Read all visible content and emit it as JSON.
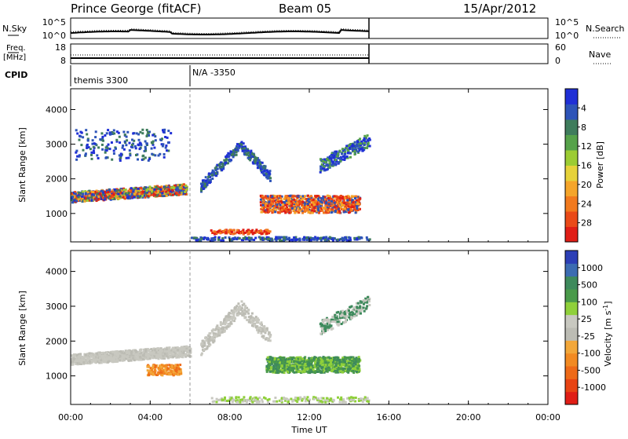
{
  "header": {
    "station": "Prince George (fitACF)",
    "beam": "Beam 05",
    "date": "15/Apr/2012"
  },
  "noise_panel": {
    "left_label": "N.Sky",
    "right_label": "N.Search",
    "left_ticks": [
      "10^5",
      "10^0"
    ],
    "right_ticks": [
      "10^5",
      "10^0"
    ]
  },
  "freq_panel": {
    "left_label_line1": "Freq.",
    "left_label_line2": "[MHz]",
    "right_label": "Nave",
    "left_ticks": [
      "18",
      "8"
    ],
    "right_ticks": [
      "60",
      "0"
    ]
  },
  "cpid_panel": {
    "label": "CPID",
    "segments": [
      {
        "text": "themis 3300",
        "start_hour": 0.0
      },
      {
        "text": "N/A -3350",
        "start_hour": 6.0
      }
    ]
  },
  "chart_data": [
    {
      "type": "heatmap",
      "ylabel": "Slant Range [km]",
      "ylim": [
        180,
        4600
      ],
      "yticks": [
        "1000",
        "2000",
        "3000",
        "4000"
      ],
      "colorbar_label": "Power [dB]",
      "colorbar_ticks": [
        "4",
        "8",
        "12",
        "16",
        "20",
        "24",
        "28"
      ],
      "colorbar_colors": [
        "#1f2fd6",
        "#2d54b8",
        "#3f7c5c",
        "#56a24a",
        "#9ccc33",
        "#e6d23a",
        "#f5a52a",
        "#f27a1e",
        "#ea4a18",
        "#e01e16"
      ],
      "time_range_hours": [
        0,
        15.0
      ]
    },
    {
      "type": "heatmap",
      "ylabel": "Slant Range [km]",
      "ylim": [
        180,
        4600
      ],
      "yticks": [
        "1000",
        "2000",
        "3000",
        "4000"
      ],
      "colorbar_label": "Velocity [m s",
      "colorbar_sup": "-1",
      "colorbar_ticks": [
        "1000",
        "500",
        "100",
        "25",
        "-25",
        "-100",
        "-500",
        "-1000"
      ],
      "colorbar_colors": [
        "#2c3fb6",
        "#3c6cb2",
        "#3e8a5c",
        "#4a9a4a",
        "#8fd03a",
        "#c8c8c0",
        "#bcbcb4",
        "#f2a73a",
        "#f28a22",
        "#ee6a18",
        "#e84414",
        "#e01e16"
      ],
      "time_range_hours": [
        0,
        15.0
      ]
    }
  ],
  "xaxis": {
    "label": "Time UT",
    "ticks": [
      "00:00",
      "04:00",
      "08:00",
      "12:00",
      "16:00",
      "20:00",
      "00:00"
    ]
  }
}
